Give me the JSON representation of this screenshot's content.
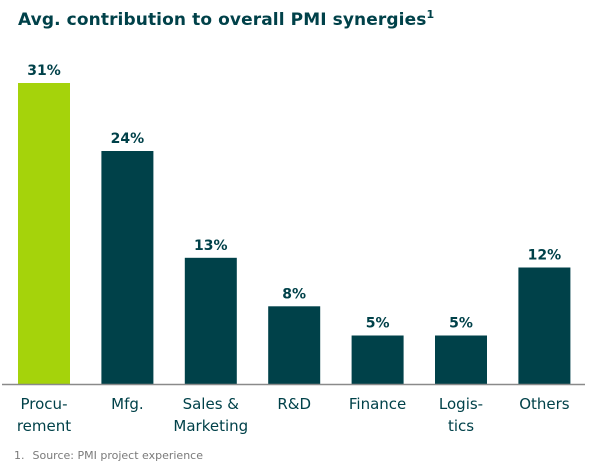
{
  "chart_data": {
    "type": "bar",
    "title": "Avg. contribution to overall PMI synergies",
    "title_footnote_marker": "1",
    "categories": [
      [
        "Procu-",
        "rement"
      ],
      [
        "Mfg."
      ],
      [
        "Sales &",
        "Marketing"
      ],
      [
        "R&D"
      ],
      [
        "Finance"
      ],
      [
        "Logis-",
        "tics"
      ],
      [
        "Others"
      ]
    ],
    "values": [
      31,
      24,
      13,
      8,
      5,
      5,
      12
    ],
    "value_labels": [
      "31%",
      "24%",
      "13%",
      "8%",
      "5%",
      "5%",
      "12%"
    ],
    "unit": "%",
    "highlight_index": 0,
    "colors": {
      "highlight": "#a5d30b",
      "default": "#004149",
      "axis": "#8a8a8a",
      "text": "#004149"
    },
    "xlabel": "",
    "ylabel": "",
    "ylim": [
      0,
      31
    ],
    "grid": false,
    "legend": "none"
  },
  "footnote": {
    "number": "1.",
    "text": "Source: PMI project experience"
  }
}
